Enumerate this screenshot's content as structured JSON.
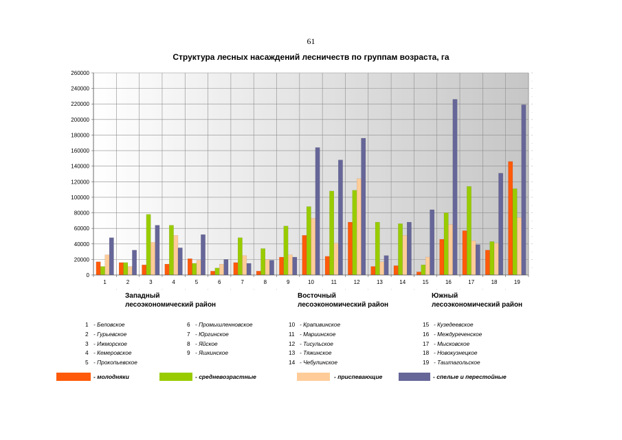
{
  "page": {
    "number": "61"
  },
  "chart_data": {
    "type": "bar",
    "title": "Структура лесных насаждений лесничеств по группам возраста, га",
    "xlabel": "",
    "ylabel": "",
    "ylim": [
      0,
      260000
    ],
    "y_ticks": [
      "0",
      "20000",
      "40000",
      "60000",
      "80000",
      "100000",
      "120000",
      "140000",
      "160000",
      "180000",
      "200000",
      "220000",
      "240000",
      "260000"
    ],
    "categories": [
      "1",
      "2",
      "3",
      "4",
      "5",
      "6",
      "7",
      "8",
      "9",
      "10",
      "11",
      "12",
      "13",
      "14",
      "15",
      "16",
      "17",
      "18",
      "19"
    ],
    "grid": true,
    "legend_position": "bottom",
    "series": [
      {
        "name": "- молодняки",
        "color": "#ff5a0a",
        "values": [
          17000,
          16000,
          13000,
          14000,
          21000,
          5000,
          16000,
          5000,
          23000,
          51000,
          24000,
          68000,
          11000,
          12000,
          4000,
          46000,
          57000,
          32000,
          146000
        ]
      },
      {
        "name": "- средневозрастные",
        "color": "#99cc00",
        "values": [
          11000,
          16000,
          78000,
          64000,
          15000,
          9000,
          48000,
          34000,
          63000,
          88000,
          108000,
          109000,
          68000,
          66000,
          13000,
          80000,
          114000,
          43000,
          111000
        ]
      },
      {
        "name": "- приспевающие",
        "color": "#ffcc99",
        "values": [
          26000,
          11000,
          42000,
          51000,
          19000,
          14000,
          25000,
          20000,
          26000,
          73000,
          41000,
          124000,
          17000,
          51000,
          23000,
          65000,
          44000,
          41000,
          74000
        ]
      },
      {
        "name": "- спелые и перестойные",
        "color": "#666699",
        "values": [
          48000,
          32000,
          64000,
          35000,
          52000,
          20000,
          15000,
          19000,
          23000,
          164000,
          148000,
          176000,
          25000,
          68000,
          84000,
          226000,
          39000,
          131000,
          219000
        ]
      }
    ]
  },
  "regions": [
    {
      "label": "Западный лесоэкономический район"
    },
    {
      "label": "Восточный лесоэкономический район"
    },
    {
      "label": "Южный лесоэкономический район"
    }
  ],
  "forestry_key": [
    {
      "num": "1",
      "name": "- Беловское"
    },
    {
      "num": "2",
      "name": "- Гурьевское"
    },
    {
      "num": "3",
      "name": "- Ижморское"
    },
    {
      "num": "4",
      "name": "- Кемеровское"
    },
    {
      "num": "5",
      "name": "- Прокопьевское"
    },
    {
      "num": "6",
      "name": "- Промышленновское"
    },
    {
      "num": "7",
      "name": "- Юргинское"
    },
    {
      "num": "8",
      "name": "- Яйское"
    },
    {
      "num": "9",
      "name": "- Яшкинское"
    },
    {
      "num": "10",
      "name": "- Крапивинское"
    },
    {
      "num": "11",
      "name": "- Мариинское"
    },
    {
      "num": "12",
      "name": "- Тисульское"
    },
    {
      "num": "13",
      "name": "- Тяжинское"
    },
    {
      "num": "14",
      "name": "- Чебулинское"
    },
    {
      "num": "15",
      "name": "- Кузедеевское"
    },
    {
      "num": "16",
      "name": "- Междуреченское"
    },
    {
      "num": "17",
      "name": "- Мысковское"
    },
    {
      "num": "18",
      "name": "- Новокузнецкое"
    },
    {
      "num": "19",
      "name": "- Таштагольское"
    }
  ]
}
